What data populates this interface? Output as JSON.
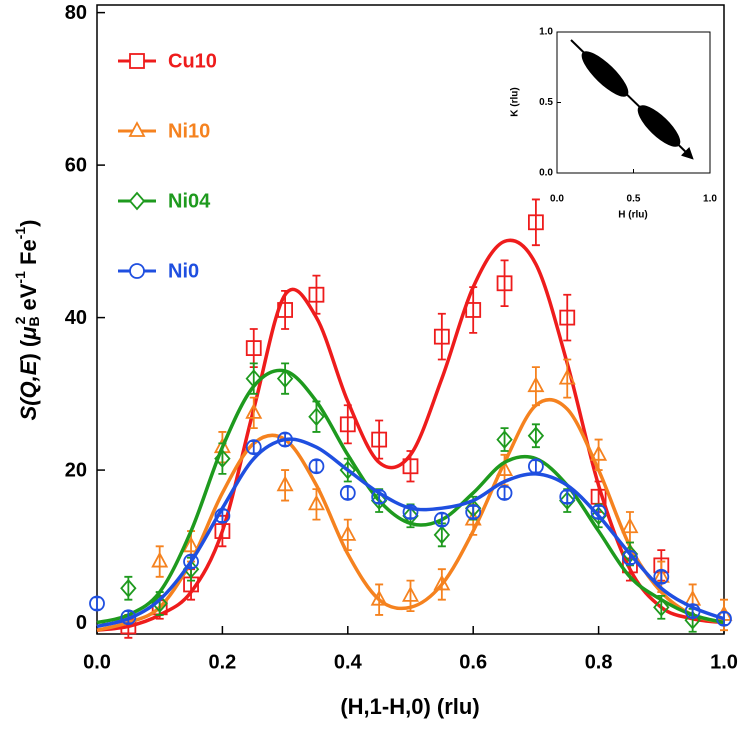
{
  "chart_data": [
    {
      "type": "scatter",
      "xlabel": "(H,1-H,0) (rlu)",
      "ylabel": [
        "S(Q,",
        "E",
        ") (",
        "μ",
        "B",
        "2",
        " eV",
        "-1",
        " Fe",
        "-1",
        ")"
      ],
      "xlim": [
        0,
        1
      ],
      "ylim": [
        -1.5,
        81
      ],
      "xticks": [
        {
          "value": 0,
          "label": "0.0"
        },
        {
          "value": 0.2,
          "label": "0.2"
        },
        {
          "value": 0.4,
          "label": "0.4"
        },
        {
          "value": 0.6,
          "label": "0.6"
        },
        {
          "value": 0.8,
          "label": "0.8"
        },
        {
          "value": 1,
          "label": "1.0"
        }
      ],
      "yticks": [
        0,
        20,
        40,
        60,
        80
      ],
      "legend": "upper left",
      "series": [
        {
          "name": "Cu10",
          "color": "#ee1c1c",
          "marker": "square",
          "x": [
            0.05,
            0.1,
            0.15,
            0.2,
            0.25,
            0.3,
            0.35,
            0.4,
            0.45,
            0.5,
            0.55,
            0.6,
            0.65,
            0.7,
            0.75,
            0.8,
            0.85,
            0.9
          ],
          "values": [
            -0.5,
            2,
            5,
            12,
            36,
            41,
            43,
            26,
            24,
            20.5,
            37.5,
            41,
            44.5,
            52.5,
            40,
            16.5,
            7.5,
            7.5
          ],
          "errors": [
            1.5,
            1.5,
            2,
            2,
            2.5,
            2.5,
            2.5,
            2.5,
            2.5,
            2,
            3,
            3,
            3,
            3,
            3,
            2,
            2,
            2
          ],
          "fit_x": [
            0,
            0.05,
            0.1,
            0.15,
            0.2,
            0.25,
            0.3,
            0.35,
            0.4,
            0.45,
            0.5,
            0.55,
            0.6,
            0.65,
            0.7,
            0.75,
            0.8,
            0.85,
            0.9,
            0.95,
            1
          ],
          "fit_values": [
            -1,
            -0.5,
            1,
            4,
            12,
            28,
            43,
            40,
            29,
            21,
            22,
            32,
            44,
            50,
            47,
            34,
            18,
            7,
            2,
            0.5,
            0
          ]
        },
        {
          "name": "Ni10",
          "color": "#f5821f",
          "marker": "triangle",
          "x": [
            0.1,
            0.15,
            0.2,
            0.25,
            0.3,
            0.35,
            0.4,
            0.45,
            0.5,
            0.55,
            0.6,
            0.65,
            0.7,
            0.75,
            0.8,
            0.85,
            0.9,
            0.95,
            1
          ],
          "values": [
            8,
            10,
            23,
            27.5,
            18,
            15.5,
            11.5,
            3,
            3.5,
            5,
            13.5,
            20,
            31,
            32,
            22,
            12.5,
            6,
            3,
            1
          ],
          "errors": [
            2,
            2,
            2,
            2,
            2,
            2,
            2,
            2,
            2,
            2,
            2,
            2,
            2.5,
            2.5,
            2,
            2,
            2,
            2,
            2
          ],
          "fit_x": [
            0,
            0.05,
            0.1,
            0.15,
            0.2,
            0.25,
            0.3,
            0.35,
            0.4,
            0.45,
            0.5,
            0.55,
            0.6,
            0.65,
            0.7,
            0.75,
            0.8,
            0.85,
            0.9,
            0.95,
            1
          ],
          "fit_values": [
            -1,
            0,
            2,
            8,
            17,
            23.5,
            24,
            18,
            9,
            3,
            2,
            5,
            12,
            21,
            28.5,
            28,
            20,
            10,
            4,
            1,
            0
          ]
        },
        {
          "name": "Ni04",
          "color": "#1e9a1e",
          "marker": "diamond",
          "x": [
            0.05,
            0.1,
            0.15,
            0.2,
            0.25,
            0.3,
            0.35,
            0.4,
            0.45,
            0.5,
            0.55,
            0.6,
            0.65,
            0.7,
            0.75,
            0.8,
            0.85,
            0.9,
            0.95
          ],
          "values": [
            4.5,
            2.5,
            7,
            21.5,
            32,
            32,
            27,
            20,
            16,
            14,
            11.5,
            15,
            24,
            24.5,
            16,
            14,
            9,
            2,
            0.3
          ],
          "errors": [
            1.5,
            1.5,
            1.5,
            2,
            2,
            2,
            2,
            1.5,
            1.5,
            1.5,
            1.5,
            1.5,
            1.5,
            1.5,
            1.5,
            1.5,
            1.5,
            1.5,
            1.5
          ],
          "fit_x": [
            0,
            0.05,
            0.1,
            0.15,
            0.2,
            0.25,
            0.3,
            0.35,
            0.4,
            0.45,
            0.5,
            0.55,
            0.6,
            0.65,
            0.7,
            0.75,
            0.8,
            0.85,
            0.9,
            0.95,
            1
          ],
          "fit_values": [
            0,
            1,
            4,
            12,
            23,
            31,
            33,
            29,
            22,
            16,
            13,
            13.5,
            17,
            21,
            21.5,
            18,
            12,
            6,
            3,
            1,
            0
          ]
        },
        {
          "name": "Ni0",
          "color": "#1f4fe0",
          "marker": "circle",
          "x": [
            0,
            0.05,
            0.15,
            0.2,
            0.25,
            0.3,
            0.35,
            0.4,
            0.45,
            0.5,
            0.55,
            0.6,
            0.65,
            0.7,
            0.75,
            0.8,
            0.85,
            0.9,
            0.95,
            1
          ],
          "values": [
            2.5,
            0.7,
            8,
            14,
            23,
            24,
            20.5,
            17,
            16.5,
            14.5,
            13.5,
            14.5,
            17,
            20.5,
            16.5,
            14.5,
            8.5,
            6,
            1.5,
            0.5
          ],
          "errors": [
            0.8,
            0.8,
            0.8,
            0.8,
            0.8,
            0.8,
            0.8,
            0.8,
            0.8,
            0.8,
            0.8,
            0.8,
            0.8,
            0.8,
            0.8,
            0.8,
            0.8,
            0.8,
            0.8,
            0.8
          ],
          "fit_x": [
            0,
            0.05,
            0.1,
            0.15,
            0.2,
            0.25,
            0.3,
            0.35,
            0.4,
            0.45,
            0.5,
            0.55,
            0.6,
            0.65,
            0.7,
            0.75,
            0.8,
            0.85,
            0.9,
            0.95,
            1
          ],
          "fit_values": [
            -0.5,
            0.5,
            3,
            8,
            15,
            21.5,
            24,
            23,
            20,
            17,
            15,
            15,
            16,
            18.5,
            19.5,
            18,
            14,
            9,
            4.5,
            2,
            0.5
          ]
        }
      ]
    },
    {
      "type": "inset",
      "xlabel": "H (rlu)",
      "ylabel": "K (rlu)",
      "xlim": [
        0,
        1
      ],
      "ylim": [
        0,
        1
      ],
      "xticks": [
        {
          "value": 0,
          "label": "0.0"
        },
        {
          "value": 0.5,
          "label": "0.5"
        },
        {
          "value": 1,
          "label": "1.0"
        }
      ],
      "yticks": [
        {
          "value": 0,
          "label": "0.0"
        },
        {
          "value": 0.5,
          "label": "0.5"
        },
        {
          "value": 1,
          "label": "1.0"
        }
      ]
    }
  ]
}
